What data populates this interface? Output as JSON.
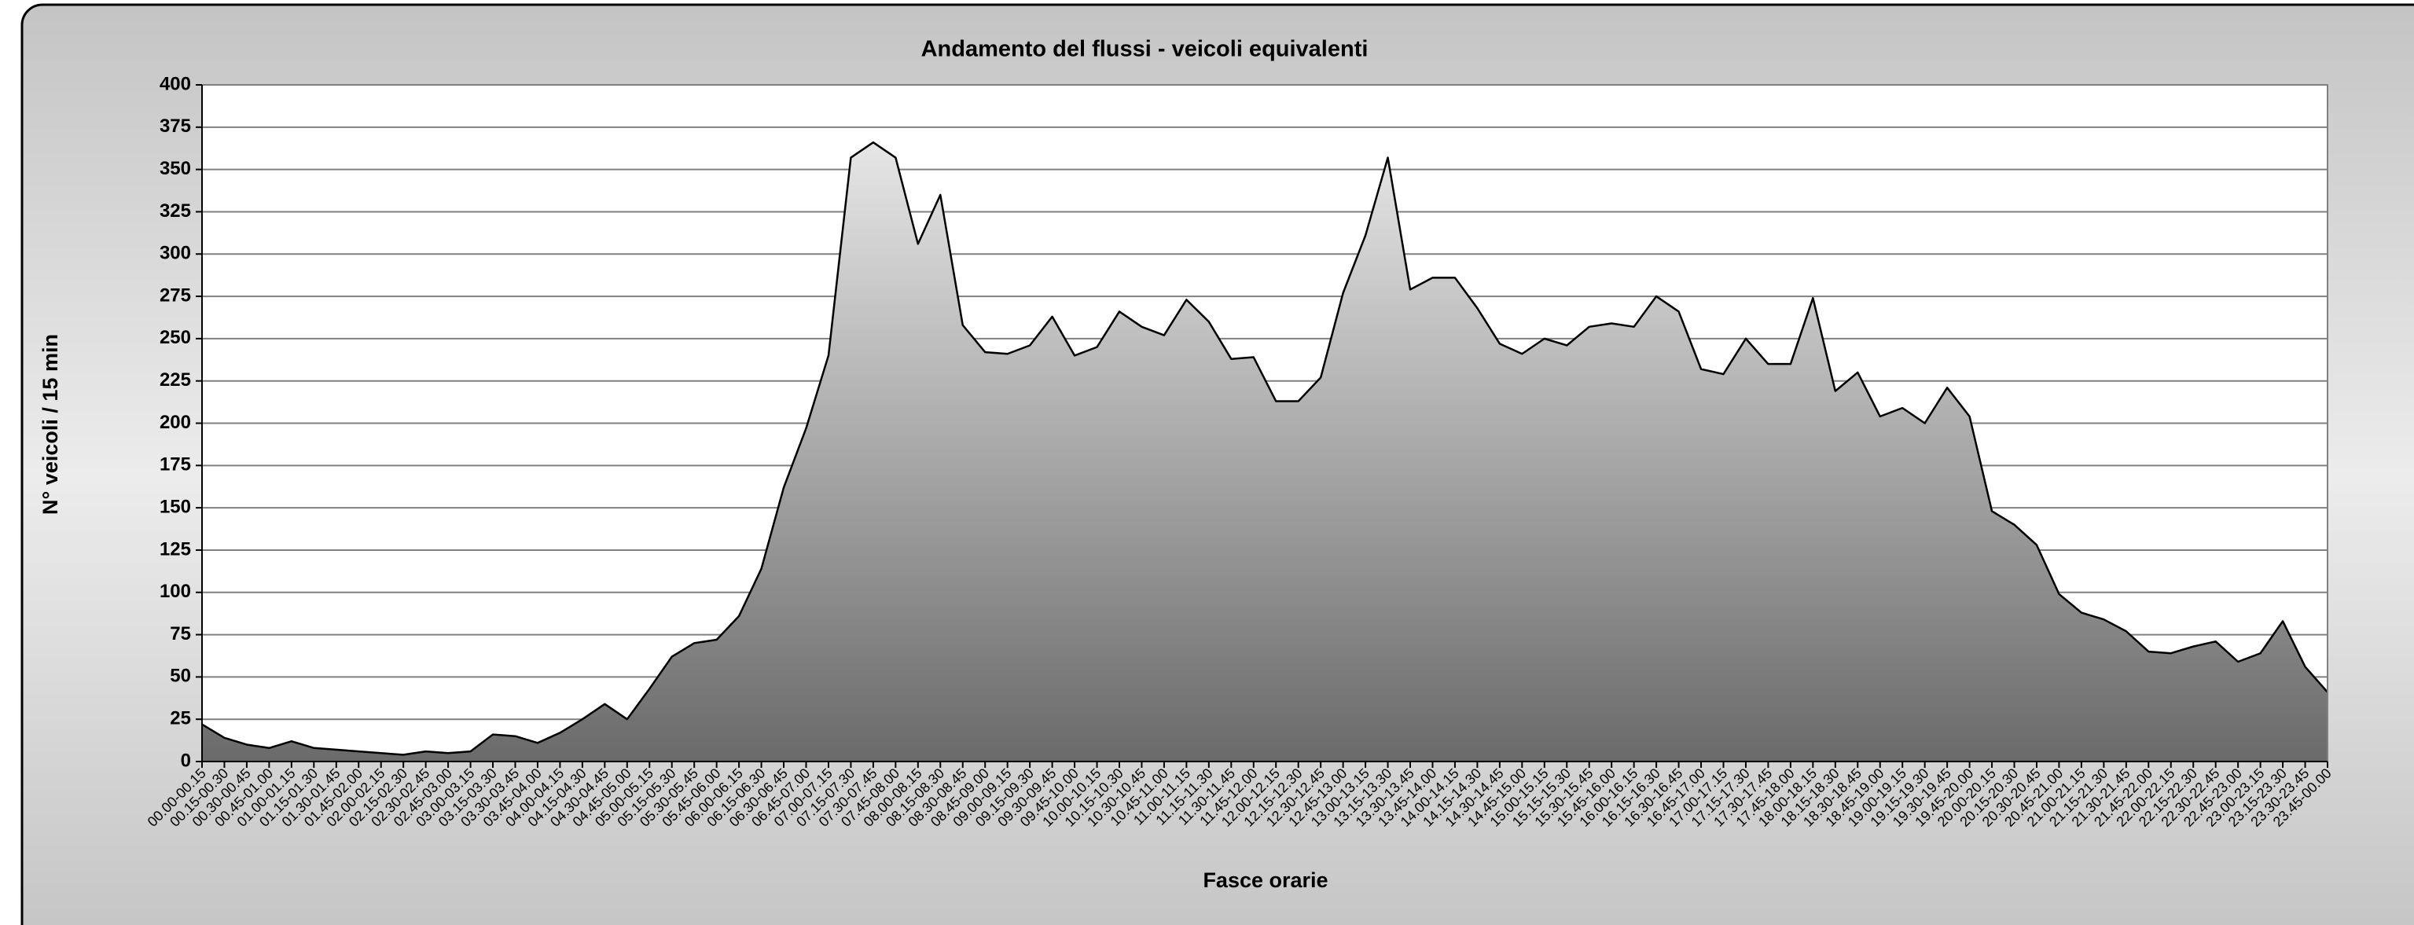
{
  "chart_data": {
    "type": "area",
    "title": "Andamento del flussi - veicoli equivalenti",
    "x_label": "Fasce orarie",
    "y_label": "N° veicoli / 15 min",
    "categories": [
      "00.00-00.15",
      "00.15-00.30",
      "00.30-00.45",
      "00.45-01.00",
      "01.00-01.15",
      "01.15-01.30",
      "01.30-01.45",
      "01.45-02.00",
      "02.00-02.15",
      "02.15-02.30",
      "02.30-02.45",
      "02.45-03.00",
      "03.00-03.15",
      "03.15-03.30",
      "03.30-03.45",
      "03.45-04.00",
      "04.00-04.15",
      "04.15-04.30",
      "04.30-04.45",
      "04.45-05.00",
      "05.00-05.15",
      "05.15-05.30",
      "05.30-05.45",
      "05.45-06.00",
      "06.00-06.15",
      "06.15-06.30",
      "06.30-06.45",
      "06.45-07.00",
      "07.00-07.15",
      "07.15-07.30",
      "07.30-07.45",
      "07.45-08.00",
      "08.00-08.15",
      "08.15-08.30",
      "08.30-08.45",
      "08.45-09.00",
      "09.00-09.15",
      "09.15-09.30",
      "09.30-09.45",
      "09.45-10.00",
      "10.00-10.15",
      "10.15-10.30",
      "10.30-10.45",
      "10.45-11.00",
      "11.00-11.15",
      "11.15-11.30",
      "11.30-11.45",
      "11.45-12.00",
      "12.00-12.15",
      "12.15-12.30",
      "12.30-12.45",
      "12.45-13.00",
      "13.00-13.15",
      "13.15-13.30",
      "13.30-13.45",
      "13.45-14.00",
      "14.00-14.15",
      "14.15-14.30",
      "14.30-14.45",
      "14.45-15.00",
      "15.00-15.15",
      "15.15-15.30",
      "15.30-15.45",
      "15.45-16.00",
      "16.00-16.15",
      "16.15-16.30",
      "16.30-16.45",
      "16.45-17.00",
      "17.00-17.15",
      "17.15-17.30",
      "17.30-17.45",
      "17.45-18.00",
      "18.00-18.15",
      "18.15-18.30",
      "18.30-18.45",
      "18.45-19.00",
      "19.00-19.15",
      "19.15-19.30",
      "19.30-19.45",
      "19.45-20.00",
      "20.00-20.15",
      "20.15-20.30",
      "20.30-20.45",
      "20.45-21.00",
      "21.00-21.15",
      "21.15-21.30",
      "21.30-21.45",
      "21.45-22.00",
      "22.00-22.15",
      "22.15-22.30",
      "22.30-22.45",
      "22.45-23.00",
      "23.00-23.15",
      "23.15-23.30",
      "23.30-23.45",
      "23.45-00.00"
    ],
    "values": [
      22,
      14,
      10,
      8,
      12,
      8,
      7,
      6,
      5,
      4,
      6,
      5,
      6,
      16,
      15,
      11,
      17,
      25,
      34,
      25,
      43,
      62,
      70,
      72,
      86,
      114,
      162,
      197,
      240,
      357,
      366,
      357,
      306,
      335,
      258,
      242,
      241,
      246,
      263,
      240,
      245,
      266,
      257,
      252,
      273,
      260,
      238,
      239,
      213,
      213,
      227,
      277,
      311,
      357,
      279,
      286,
      286,
      268,
      247,
      241,
      250,
      246,
      257,
      259,
      257,
      275,
      266,
      232,
      229,
      250,
      235,
      235,
      274,
      219,
      230,
      204,
      209,
      200,
      221,
      204,
      148,
      140,
      128,
      99,
      88,
      84,
      77,
      65,
      64,
      68,
      71,
      59,
      64,
      83,
      56,
      41
    ],
    "color": "#000000",
    "ylim": [
      0,
      400
    ],
    "yticks": [
      0,
      25,
      50,
      75,
      100,
      125,
      150,
      175,
      200,
      225,
      250,
      275,
      300,
      325,
      350,
      375,
      400
    ],
    "grid": true
  }
}
